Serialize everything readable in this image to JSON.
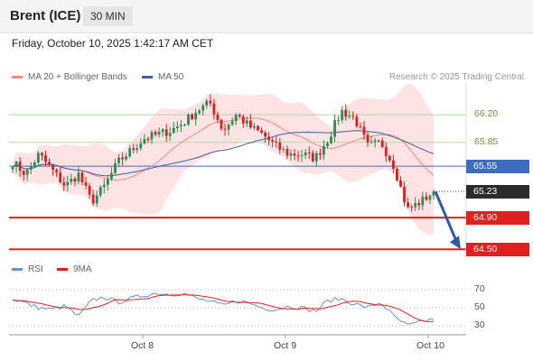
{
  "header": {
    "symbol": "Brent (ICE)",
    "timeframe": "30 MIN"
  },
  "datetime": "Friday, October 10, 2025 1:42:17 AM CET",
  "legend": {
    "ma20_label": "MA 20 + Bollinger Bands",
    "ma50_label": "MA 50",
    "copyright": "Research © 2025 Trading Central"
  },
  "rsi_legend": {
    "rsi_label": "RSI",
    "ma_label": "9MA"
  },
  "colors": {
    "ma20": "#f08a84",
    "ma50": "#3f5f9e",
    "up": "#2e8b57",
    "down": "#d62020",
    "resistance": "#b8d89a",
    "support": "#e02020",
    "pivot": "#3e6dbe",
    "rsi": "#6a8fdb",
    "rsi_ma": "#e02020"
  },
  "chart_data": {
    "type": "candlestick",
    "x_ticks": [
      "Oct 8",
      "Oct 9",
      "Oct 10"
    ],
    "price_range": [
      64.4,
      66.6
    ],
    "levels": [
      {
        "value": 66.2,
        "label": "66.20",
        "kind": "resistance"
      },
      {
        "value": 65.85,
        "label": "65.85",
        "kind": "resistance"
      },
      {
        "value": 65.55,
        "label": "65.55",
        "kind": "pivot"
      },
      {
        "value": 65.23,
        "label": "65.23",
        "kind": "last"
      },
      {
        "value": 64.9,
        "label": "64.90",
        "kind": "support"
      },
      {
        "value": 64.5,
        "label": "64.50",
        "kind": "support"
      }
    ],
    "close_anchors": [
      65.6,
      65.45,
      65.7,
      65.5,
      65.3,
      65.45,
      65.1,
      65.3,
      65.6,
      65.75,
      65.9,
      65.95,
      66.0,
      66.1,
      66.25,
      66.35,
      66.0,
      66.2,
      66.05,
      65.95,
      65.8,
      65.7,
      65.7,
      65.65,
      65.9,
      66.25,
      66.15,
      65.8,
      65.85,
      65.55,
      65.0,
      65.1,
      65.23
    ],
    "trend_arrow": {
      "from": 65.23,
      "to": 64.5
    },
    "rsi": {
      "levels": [
        70,
        50,
        30
      ],
      "range": [
        25,
        75
      ],
      "anchors": [
        60,
        55,
        50,
        48,
        52,
        40,
        58,
        62,
        56,
        60,
        64,
        66,
        65,
        66,
        60,
        57,
        52,
        58,
        55,
        50,
        48,
        52,
        50,
        46,
        58,
        60,
        54,
        50,
        56,
        40,
        30,
        34,
        38
      ]
    }
  }
}
